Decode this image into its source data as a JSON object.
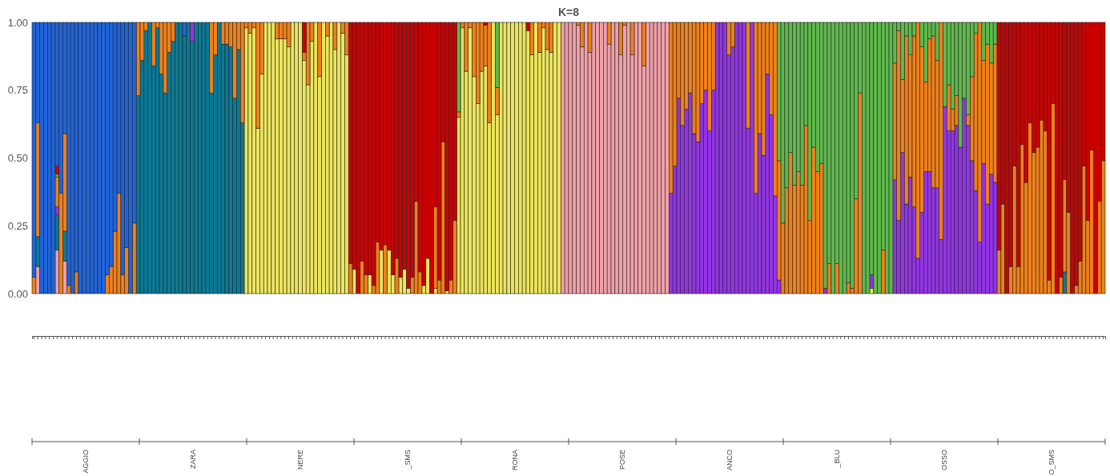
{
  "chart_data": {
    "type": "bar",
    "stacked": true,
    "title": "K=8",
    "ylim": [
      0,
      1
    ],
    "yticks": [
      {
        "value": 0,
        "label": "0.00"
      },
      {
        "value": 0.25,
        "label": "0.25"
      },
      {
        "value": 0.5,
        "label": "0.50"
      },
      {
        "value": 0.75,
        "label": "0.75"
      },
      {
        "value": 1,
        "label": "1.00"
      }
    ],
    "tick_labels": "y",
    "grid": false,
    "annotations": [
      "AGGIO",
      "ZARA",
      "NERE",
      "_SMS",
      "RONA",
      "POSE",
      "ANCO",
      "_BLU",
      "OSSO",
      "O_SMS"
    ],
    "categories": [
      null,
      null,
      null,
      null,
      null,
      null,
      null,
      null,
      null,
      null,
      null,
      null,
      null,
      null,
      null,
      null,
      null,
      null,
      null,
      null,
      null,
      null,
      null,
      null,
      null,
      null,
      null,
      null,
      null,
      null,
      null,
      null,
      null,
      null,
      null,
      null,
      null,
      null,
      null,
      null,
      null,
      null,
      null,
      null,
      null,
      null,
      null,
      null,
      null,
      null,
      null,
      null,
      null,
      null,
      null,
      null,
      null,
      null,
      null,
      null,
      null,
      null,
      null,
      null,
      null,
      null,
      null,
      null,
      null,
      null,
      null,
      null,
      null,
      null,
      null,
      null,
      null,
      null,
      null,
      null,
      null,
      null,
      null,
      null,
      null,
      null,
      null,
      null,
      null,
      null,
      null,
      null,
      null,
      null,
      null,
      null,
      null,
      null,
      null,
      null,
      null,
      null,
      null,
      null,
      null,
      null,
      null,
      null,
      null,
      null,
      null,
      null,
      null,
      null,
      null,
      null,
      null,
      null,
      null,
      null,
      null,
      null,
      null,
      null,
      null,
      null,
      null,
      null,
      null,
      null,
      null,
      null,
      null,
      null,
      null,
      null,
      null,
      null,
      null,
      null,
      null,
      null,
      null,
      null,
      null,
      null,
      null,
      null,
      null,
      null,
      null,
      null,
      null,
      null,
      null,
      null,
      null,
      null,
      null,
      null,
      null,
      null,
      null,
      null,
      null,
      null,
      null,
      null,
      null,
      null,
      null,
      null,
      null,
      null,
      null,
      null,
      null,
      null,
      null,
      null,
      null,
      null,
      null,
      null,
      null,
      null,
      null,
      null,
      null,
      null,
      null,
      null,
      null,
      null,
      null,
      null,
      null,
      null,
      null,
      null,
      null,
      null,
      null,
      null,
      null,
      null,
      null,
      null,
      null,
      null,
      null,
      null,
      null,
      null,
      null,
      null,
      null,
      null,
      null,
      null,
      null,
      null,
      null,
      null,
      null,
      null,
      null,
      null,
      null,
      null,
      null,
      null,
      null,
      null,
      null,
      null,
      null,
      null,
      null,
      null,
      null,
      null,
      null,
      null,
      null,
      null,
      null,
      null,
      null,
      null,
      null,
      null,
      null,
      null,
      null,
      null,
      null,
      null,
      null,
      null,
      null,
      null,
      null,
      null,
      null,
      null,
      null,
      null,
      null,
      null,
      null,
      null,
      null,
      null,
      null,
      null,
      null,
      null
    ],
    "series": [
      {
        "color": "#f0a0a8",
        "values": [
          0,
          0.1,
          0,
          0,
          0,
          0,
          0.16,
          0,
          0.12,
          0,
          0,
          0,
          0,
          0,
          0,
          0,
          0,
          0,
          0,
          0,
          0,
          0,
          0,
          0,
          0,
          0,
          0,
          0,
          0,
          0,
          0,
          0,
          0,
          0,
          0,
          0,
          0,
          0,
          0,
          0,
          0,
          0,
          0,
          0,
          0,
          0,
          0,
          0,
          0,
          0,
          0,
          0,
          0,
          0,
          0,
          0,
          0,
          0,
          0,
          0,
          0,
          0,
          0,
          0,
          0,
          0,
          0,
          0,
          0,
          0,
          0,
          0,
          0,
          0,
          0,
          0,
          0,
          0,
          0,
          0,
          0,
          0,
          0,
          0,
          0,
          0,
          0,
          0,
          0,
          0,
          0,
          0,
          0,
          0,
          0,
          0,
          0,
          0,
          0,
          0,
          0,
          0,
          0,
          0,
          0,
          0,
          0,
          0,
          0,
          0,
          0,
          0,
          0,
          0,
          0,
          0,
          0,
          0,
          0,
          0,
          0,
          0,
          0,
          0,
          0,
          0,
          0,
          0,
          0,
          0,
          0,
          0,
          0,
          0,
          0,
          0,
          0,
          1,
          1,
          1,
          1,
          0.99,
          0.91,
          1,
          0.89,
          1,
          1,
          1,
          1,
          0.92,
          1,
          1,
          0.88,
          0.99,
          1,
          0.88,
          1,
          1,
          0.84,
          1,
          1,
          1,
          1,
          1,
          1,
          0,
          0,
          0,
          0,
          0,
          0,
          0,
          0,
          0,
          0,
          0,
          0,
          0,
          0,
          0,
          0,
          0,
          0,
          0,
          0,
          0,
          0,
          0,
          0,
          0,
          0,
          0,
          0,
          0,
          0,
          0,
          0,
          0,
          0,
          0,
          0,
          0,
          0,
          0,
          0,
          0,
          0,
          0,
          0,
          0,
          0,
          0,
          0,
          0,
          0,
          0,
          0,
          0,
          0,
          0,
          0,
          0,
          0,
          0,
          0,
          0,
          0,
          0,
          0,
          0,
          0,
          0,
          0,
          0,
          0,
          0,
          0,
          0,
          0,
          0,
          0,
          0,
          0,
          0,
          0,
          0,
          0,
          0,
          0,
          0,
          0,
          0,
          0,
          0,
          0,
          0,
          0,
          0,
          0,
          0,
          0,
          0,
          0,
          0,
          0,
          0,
          0,
          0,
          0,
          0,
          0,
          0,
          0,
          0,
          0,
          0,
          0,
          0
        ]
      },
      {
        "color": "#0a7a96",
        "values": [
          0,
          0.11,
          0,
          0,
          0,
          0,
          0.13,
          0,
          0.11,
          0,
          0,
          0,
          0,
          0,
          0,
          0,
          0,
          0,
          0,
          0,
          0,
          0,
          0,
          0,
          0,
          0,
          0,
          0.73,
          0.86,
          0.97,
          1,
          0.84,
          0.98,
          0.81,
          0.74,
          0.89,
          0.93,
          1,
          1,
          0.95,
          1,
          0.93,
          1,
          1,
          1,
          1,
          0.74,
          0.88,
          1,
          0.92,
          0.92,
          0.91,
          0.72,
          0.9,
          0.63,
          0,
          0,
          0,
          0,
          0,
          0,
          0,
          0,
          0,
          0,
          0,
          0,
          0,
          0,
          0,
          0,
          0,
          0,
          0,
          0,
          0,
          0,
          0,
          0,
          0,
          0,
          0,
          0,
          0,
          0,
          0,
          0,
          0,
          0,
          0,
          0,
          0,
          0,
          0,
          0,
          0,
          0,
          0,
          0,
          0,
          0,
          0,
          0,
          0,
          0,
          0,
          0,
          0,
          0,
          0,
          0,
          0,
          0,
          0,
          0,
          0,
          0,
          0,
          0,
          0,
          0,
          0,
          0,
          0,
          0,
          0,
          0,
          0,
          0,
          0,
          0,
          0,
          0,
          0,
          0,
          0,
          0,
          0,
          0,
          0,
          0,
          0,
          0,
          0,
          0,
          0,
          0,
          0,
          0,
          0,
          0,
          0,
          0,
          0,
          0,
          0,
          0,
          0,
          0,
          0,
          0,
          0,
          0,
          0,
          0,
          0,
          0,
          0,
          0,
          0,
          0,
          0,
          0,
          0,
          0,
          0,
          0,
          0,
          0,
          0,
          0,
          0,
          0,
          0,
          0,
          0,
          0,
          0,
          0,
          0,
          0,
          0,
          0,
          0,
          0,
          0,
          0,
          0,
          0,
          0,
          0,
          0,
          0,
          0,
          0,
          0,
          0,
          0,
          0,
          0,
          0,
          0,
          0,
          0,
          0,
          0,
          0,
          0,
          0,
          0,
          0,
          0,
          0,
          0,
          0,
          0,
          0,
          0,
          0,
          0,
          0,
          0,
          0,
          0,
          0,
          0,
          0,
          0,
          0,
          0,
          0,
          0,
          0,
          0,
          0,
          0,
          0,
          0,
          0,
          0,
          0,
          0,
          0,
          0,
          0,
          0,
          0,
          0,
          0,
          0,
          0,
          0,
          0,
          0,
          0,
          0,
          0,
          0.08,
          0,
          0,
          0,
          0,
          0,
          0,
          0,
          0,
          0,
          0
        ]
      },
      {
        "color": "#ece55c",
        "values": [
          0,
          0,
          0,
          0,
          0,
          0,
          0,
          0,
          0,
          0,
          0,
          0,
          0,
          0,
          0,
          0,
          0,
          0,
          0,
          0,
          0,
          0,
          0,
          0,
          0,
          0,
          0,
          0,
          0,
          0,
          0,
          0,
          0,
          0,
          0,
          0,
          0,
          0,
          0,
          0,
          0,
          0,
          0,
          0,
          0,
          0,
          0,
          0,
          0,
          0,
          0,
          0,
          0,
          0,
          0,
          0.98,
          0.96,
          0.98,
          0.61,
          0.81,
          1,
          1,
          1,
          0.94,
          0.94,
          0.94,
          0.91,
          1,
          1,
          1,
          0.86,
          0.77,
          0.93,
          1,
          0.8,
          1,
          0.95,
          1,
          0.9,
          1,
          0.96,
          0.88,
          0,
          0.09,
          0,
          0,
          0,
          0.07,
          0,
          0,
          0.16,
          0,
          0.16,
          0.07,
          0,
          0.06,
          0.09,
          0.02,
          0,
          0,
          0,
          0.03,
          0.13,
          0,
          0.02,
          0,
          0,
          0.01,
          0,
          0,
          0.65,
          0.98,
          0.82,
          0.98,
          0.8,
          0.7,
          0.82,
          0.84,
          0.63,
          1,
          0.66,
          1,
          1,
          1,
          1,
          1,
          1,
          1,
          0.97,
          0.88,
          1,
          0.89,
          0.98,
          0.9,
          0.89,
          1,
          1,
          0,
          0,
          0,
          0,
          0,
          0,
          0,
          0,
          0,
          0,
          0,
          0,
          0,
          0,
          0,
          0,
          0,
          0,
          0,
          0,
          0,
          0,
          0,
          0,
          0,
          0,
          0,
          0,
          0,
          0,
          0,
          0,
          0,
          0,
          0,
          0,
          0,
          0,
          0,
          0,
          0,
          0,
          0,
          0,
          0,
          0,
          0,
          0,
          0,
          0,
          0,
          0,
          0,
          0,
          0,
          0,
          0,
          0,
          0,
          0,
          0,
          0,
          0,
          0,
          0,
          0,
          0,
          0,
          0,
          0,
          0,
          0,
          0,
          0,
          0,
          0,
          0,
          0,
          0,
          0,
          0.02,
          0,
          0,
          0,
          0,
          0,
          0,
          0,
          0,
          0,
          0,
          0,
          0,
          0,
          0,
          0,
          0,
          0,
          0,
          0,
          0,
          0,
          0,
          0,
          0,
          0,
          0,
          0,
          0,
          0,
          0,
          0,
          0,
          0,
          0,
          0,
          0,
          0,
          0,
          0,
          0,
          0,
          0,
          0,
          0,
          0,
          0,
          0,
          0,
          0,
          0,
          0,
          0,
          0,
          0,
          0,
          0,
          0,
          0,
          0,
          0
        ]
      },
      {
        "color": "#9334e6",
        "values": [
          0,
          0,
          0,
          0,
          0,
          0,
          0.03,
          0,
          0,
          0,
          0,
          0,
          0,
          0,
          0,
          0,
          0,
          0,
          0,
          0,
          0,
          0,
          0,
          0,
          0,
          0,
          0,
          0,
          0,
          0,
          0,
          0,
          0,
          0,
          0,
          0,
          0,
          0,
          0,
          0,
          0,
          0.07,
          0,
          0,
          0,
          0,
          0,
          0,
          0,
          0,
          0,
          0,
          0,
          0,
          0,
          0,
          0,
          0,
          0,
          0,
          0,
          0,
          0,
          0,
          0,
          0,
          0,
          0,
          0,
          0,
          0,
          0,
          0,
          0,
          0,
          0,
          0,
          0,
          0,
          0,
          0,
          0,
          0,
          0,
          0,
          0,
          0,
          0,
          0,
          0,
          0,
          0,
          0,
          0,
          0,
          0,
          0,
          0,
          0,
          0,
          0,
          0,
          0,
          0,
          0,
          0,
          0,
          0,
          0,
          0,
          0,
          0,
          0,
          0,
          0,
          0,
          0,
          0,
          0,
          0,
          0,
          0,
          0,
          0,
          0,
          0,
          0,
          0,
          0,
          0,
          0,
          0,
          0,
          0,
          0,
          0,
          0,
          0,
          0,
          0,
          0,
          0,
          0,
          0,
          0,
          0,
          0,
          0,
          0,
          0,
          0,
          0,
          0,
          0,
          0,
          0,
          0,
          0,
          0,
          0,
          0,
          0,
          0,
          0,
          0,
          0.37,
          0.47,
          0.72,
          0.62,
          0.68,
          0.74,
          0.59,
          0.56,
          0.7,
          0.75,
          0.6,
          0.75,
          1,
          1,
          1,
          0.88,
          0.91,
          1,
          1,
          1,
          0.61,
          1,
          0.37,
          0.59,
          0.51,
          0.81,
          0.66,
          0.36,
          0.05,
          0,
          0,
          0,
          0,
          0,
          0,
          0,
          0,
          0,
          0,
          0,
          0.02,
          0,
          0,
          0,
          0,
          0,
          0,
          0,
          0,
          0,
          0,
          0,
          0.05,
          0,
          0,
          0,
          0,
          0,
          0.42,
          0.27,
          0.52,
          0.33,
          0.43,
          0.32,
          0.13,
          0.3,
          0.45,
          0.45,
          0.39,
          0.39,
          0.2,
          0.69,
          0.6,
          0.6,
          0.62,
          0.54,
          0.72,
          0.62,
          0.49,
          0.38,
          0.19,
          0.48,
          0.33,
          0.44,
          0.41,
          0,
          0,
          0,
          0,
          0,
          0,
          0,
          0,
          0,
          0,
          0,
          0,
          0,
          0,
          0,
          0,
          0,
          0,
          0,
          0,
          0,
          0,
          0,
          0,
          0,
          0,
          0,
          0
        ]
      },
      {
        "color": "#f0801a",
        "values": [
          0.06,
          0.42,
          0,
          0,
          0,
          0,
          0.11,
          0.37,
          0.36,
          0.03,
          0,
          0.08,
          0,
          0,
          0,
          0,
          0,
          0,
          0,
          0.07,
          0.1,
          0.23,
          0.37,
          0.07,
          0.17,
          0,
          0.26,
          0.27,
          0.14,
          0.03,
          0,
          0.16,
          0.02,
          0.19,
          0.26,
          0.11,
          0.07,
          0,
          0,
          0,
          0,
          0,
          0,
          0,
          0,
          0,
          0.26,
          0.12,
          0,
          0.08,
          0.08,
          0.09,
          0.28,
          0.1,
          0.37,
          0.02,
          0.04,
          0.02,
          0.39,
          0.19,
          0,
          0,
          0,
          0.06,
          0.06,
          0.06,
          0.09,
          0,
          0,
          0,
          0.03,
          0.23,
          0.07,
          0,
          0.2,
          0,
          0.05,
          0,
          0.1,
          0,
          0.04,
          0.12,
          0.11,
          0,
          0,
          0.12,
          0.07,
          0,
          0.03,
          0.19,
          0,
          0.18,
          0,
          0,
          0.13,
          0,
          0,
          0,
          0.06,
          0.34,
          0.08,
          0,
          0,
          0,
          0.3,
          0.05,
          0.56,
          0,
          0.05,
          0.27,
          0.02,
          0.02,
          0.18,
          0.02,
          0.2,
          0.3,
          0.18,
          0.15,
          0.37,
          0,
          0.1,
          0,
          0,
          0,
          0,
          0,
          0,
          0,
          0,
          0.12,
          0,
          0.11,
          0.02,
          0.1,
          0.11,
          0,
          0,
          0,
          0,
          0,
          0,
          0.01,
          0.09,
          0,
          0.11,
          0,
          0,
          0,
          0,
          0.08,
          0,
          0,
          0.12,
          0.01,
          0,
          0.12,
          0,
          0,
          0.16,
          0,
          0,
          0,
          0,
          0,
          0,
          0.63,
          0.53,
          0.28,
          0.38,
          0.32,
          0.26,
          0.41,
          0.44,
          0.3,
          0.25,
          0.4,
          0.25,
          0,
          0,
          0,
          0.12,
          0.09,
          0,
          0,
          0,
          0.39,
          0,
          0.63,
          0.41,
          0.49,
          0.19,
          0.34,
          0.64,
          0.44,
          0.26,
          0.39,
          0.52,
          0.4,
          0.45,
          0.4,
          0.62,
          0.27,
          0.54,
          0.45,
          0.48,
          0,
          0.11,
          0,
          0.11,
          0,
          0,
          0.04,
          0.02,
          0.35,
          0.74,
          0,
          0,
          0,
          0,
          0,
          0.16,
          0,
          0,
          0.43,
          0.7,
          0.27,
          0.62,
          0.45,
          0.63,
          0.87,
          0.61,
          0.33,
          0.49,
          0.56,
          0.47,
          0.8,
          0,
          0.17,
          0.08,
          0.11,
          0,
          0,
          0.04,
          0.31,
          0.58,
          0.81,
          0.38,
          0.59,
          0.41,
          0.51,
          0.16,
          0.33,
          0,
          0.1,
          0.47,
          0.1,
          0.55,
          0.41,
          0.63,
          0.52,
          0.54,
          0.64,
          0.6,
          0.05,
          0.7,
          0,
          0.06,
          0.34,
          0.3,
          0,
          0.03,
          0.12,
          0.47,
          0.27,
          0.53,
          0,
          0.34,
          0.49
        ]
      },
      {
        "color": "#5fb94c",
        "values": [
          0,
          0,
          0,
          0,
          0,
          0,
          0.01,
          0,
          0,
          0,
          0,
          0,
          0,
          0,
          0,
          0,
          0,
          0,
          0,
          0,
          0,
          0,
          0,
          0,
          0,
          0,
          0,
          0,
          0,
          0,
          0,
          0,
          0,
          0,
          0,
          0,
          0,
          0,
          0,
          0,
          0,
          0,
          0,
          0,
          0,
          0,
          0,
          0,
          0,
          0,
          0,
          0,
          0,
          0,
          0,
          0,
          0,
          0,
          0,
          0,
          0,
          0,
          0,
          0,
          0,
          0,
          0,
          0,
          0,
          0,
          0,
          0,
          0,
          0,
          0,
          0,
          0,
          0,
          0,
          0,
          0,
          0,
          0,
          0,
          0,
          0,
          0,
          0,
          0,
          0,
          0,
          0,
          0,
          0,
          0,
          0,
          0,
          0,
          0,
          0,
          0,
          0,
          0,
          0,
          0,
          0,
          0,
          0,
          0,
          0,
          0.33,
          0,
          0,
          0,
          0,
          0,
          0,
          0,
          0,
          0,
          0.24,
          0,
          0,
          0,
          0,
          0,
          0,
          0,
          0,
          0,
          0,
          0,
          0,
          0,
          0,
          0,
          0,
          0,
          0,
          0,
          0,
          0,
          0,
          0,
          0,
          0,
          0,
          0,
          0,
          0,
          0,
          0,
          0,
          0,
          0,
          0,
          0,
          0,
          0,
          0,
          0,
          0,
          0,
          0,
          0,
          0,
          0,
          0,
          0,
          0,
          0,
          0,
          0,
          0,
          0,
          0,
          0,
          0,
          0,
          0,
          0,
          0,
          0,
          0,
          0,
          0,
          0,
          0,
          0,
          0,
          0,
          0,
          0,
          0.51,
          0.74,
          0.61,
          0.48,
          0.6,
          0.55,
          0.6,
          0.38,
          0.73,
          0.46,
          0.55,
          0.52,
          0.98,
          0.89,
          1,
          0.89,
          1,
          1,
          0.96,
          0.98,
          0.65,
          0.26,
          1,
          1,
          0.93,
          1,
          1,
          0.84,
          1,
          1,
          0.15,
          0.03,
          0.21,
          0.05,
          0.12,
          0.05,
          0,
          0.09,
          0.22,
          0.06,
          0.05,
          0.14,
          0,
          0.31,
          0.23,
          0.32,
          0.27,
          0.46,
          0.28,
          0.34,
          0.2,
          0.04,
          0,
          0.14,
          0.08,
          0.15,
          0.08,
          0,
          0,
          0,
          0,
          0,
          0,
          0,
          0,
          0,
          0,
          0,
          0,
          0,
          0,
          0,
          0,
          0,
          0,
          0,
          0,
          0,
          0,
          0,
          0,
          0,
          0,
          0,
          0
        ]
      },
      {
        "color": "#cc0000",
        "values": [
          0,
          0,
          0,
          0,
          0,
          0,
          0.03,
          0,
          0,
          0,
          0,
          0,
          0,
          0,
          0,
          0,
          0,
          0,
          0,
          0,
          0,
          0,
          0,
          0,
          0,
          0,
          0,
          0,
          0,
          0,
          0,
          0,
          0,
          0,
          0,
          0,
          0,
          0,
          0,
          0,
          0,
          0,
          0,
          0,
          0,
          0,
          0,
          0,
          0,
          0,
          0,
          0,
          0,
          0,
          0,
          0,
          0,
          0,
          0,
          0,
          0,
          0,
          0,
          0,
          0,
          0,
          0,
          0,
          0,
          0,
          0.11,
          0,
          0,
          0,
          0,
          0,
          0,
          0,
          0,
          0,
          0,
          0,
          0.89,
          0.91,
          1,
          0.88,
          0.93,
          0.93,
          0.97,
          0.81,
          0.84,
          0.82,
          0.84,
          0.93,
          0.87,
          0.94,
          0.91,
          0.98,
          0.94,
          0.66,
          0.92,
          0.97,
          0.87,
          1,
          0.68,
          0.95,
          0.44,
          0.99,
          0.95,
          0.73,
          0,
          0,
          0,
          0,
          0,
          0,
          0,
          0.01,
          0,
          0,
          0,
          0,
          0,
          0,
          0,
          0,
          0,
          0,
          0.03,
          0,
          0,
          0,
          0,
          0,
          0,
          0,
          0,
          0,
          0,
          0,
          0,
          0,
          0,
          0,
          0,
          0,
          0,
          0,
          0,
          0,
          0,
          0,
          0,
          0,
          0,
          0,
          0,
          0,
          0,
          0,
          0,
          0,
          0,
          0,
          0,
          0,
          0,
          0,
          0,
          0,
          0,
          0,
          0,
          0,
          0,
          0,
          0,
          0,
          0,
          0,
          0,
          0,
          0,
          0,
          0,
          0,
          0,
          0,
          0,
          0,
          0,
          0,
          0,
          0,
          0,
          0,
          0,
          0,
          0,
          0,
          0,
          0,
          0,
          0,
          0,
          0,
          0,
          0,
          0,
          0,
          0,
          0,
          0,
          0,
          0,
          0,
          0,
          0,
          0,
          0,
          0,
          0,
          0,
          0,
          0,
          0,
          0,
          0,
          0,
          0,
          0,
          0,
          0,
          0,
          0,
          0,
          0,
          0,
          0,
          0,
          0,
          0,
          0,
          0,
          0,
          0,
          0,
          0,
          0,
          0,
          0.84,
          0.67,
          1,
          0.9,
          0.53,
          0.9,
          0.45,
          0.59,
          0.37,
          0.48,
          0.46,
          0.36,
          0.4,
          0.95,
          0.3,
          1,
          0.94,
          0.58,
          0.7,
          1,
          0.97,
          0.88,
          0.53,
          0.73,
          0.47,
          1,
          0.66,
          0.51
        ]
      },
      {
        "color": "#1f64dc",
        "values": [
          0.94,
          0.37,
          1,
          1,
          1,
          1,
          0.53,
          0.63,
          0.41,
          0.97,
          1,
          0.92,
          1,
          1,
          1,
          1,
          1,
          1,
          1,
          0.93,
          0.9,
          0.77,
          0.63,
          0.93,
          0.83,
          1,
          0.74,
          0,
          0,
          0,
          0,
          0,
          0,
          0,
          0,
          0,
          0,
          0,
          0,
          0.05,
          0,
          0,
          0,
          0,
          0,
          0,
          0,
          0,
          0,
          0,
          0,
          0,
          0,
          0,
          0,
          0,
          0,
          0,
          0,
          0,
          0,
          0,
          0,
          0,
          0,
          0,
          0,
          0,
          0,
          0,
          0,
          0,
          0,
          0,
          0,
          0,
          0,
          0,
          0,
          0,
          0,
          0,
          0,
          0,
          0,
          0,
          0,
          0,
          0,
          0,
          0,
          0,
          0,
          0,
          0,
          0,
          0,
          0,
          0,
          0,
          0,
          0,
          0,
          0,
          0,
          0,
          0,
          0,
          0,
          0,
          0,
          0,
          0,
          0,
          0,
          0,
          0,
          0,
          0,
          0,
          0,
          0,
          0,
          0,
          0,
          0,
          0,
          0,
          0,
          0,
          0,
          0,
          0,
          0,
          0,
          0,
          0,
          0,
          0,
          0,
          0,
          0,
          0,
          0,
          0,
          0,
          0,
          0,
          0,
          0,
          0,
          0,
          0,
          0,
          0,
          0,
          0,
          0,
          0,
          0,
          0,
          0,
          0,
          0,
          0,
          0,
          0,
          0,
          0,
          0,
          0,
          0,
          0,
          0,
          0,
          0,
          0,
          0,
          0,
          0,
          0,
          0,
          0,
          0,
          0,
          0,
          0,
          0,
          0,
          0,
          0,
          0,
          0,
          0,
          0,
          0,
          0,
          0,
          0,
          0,
          0,
          0,
          0,
          0,
          0,
          0,
          0,
          0,
          0,
          0,
          0,
          0,
          0,
          0,
          0,
          0,
          0,
          0,
          0,
          0,
          0,
          0,
          0,
          0,
          0,
          0,
          0,
          0,
          0,
          0,
          0,
          0,
          0,
          0,
          0,
          0,
          0,
          0,
          0,
          0,
          0,
          0,
          0,
          0,
          0,
          0,
          0,
          0,
          0,
          0,
          0,
          0,
          0,
          0,
          0,
          0,
          0,
          0,
          0,
          0,
          0,
          0,
          0,
          0,
          0,
          0,
          0,
          0,
          0,
          0,
          0,
          0,
          0,
          0,
          0,
          0,
          0,
          0
        ]
      }
    ]
  }
}
